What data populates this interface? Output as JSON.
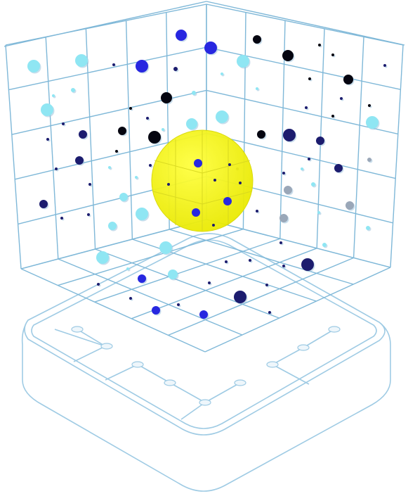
{
  "colors": {
    "grid": "#7fb8d8",
    "base": "#9fcbe4",
    "highlight": "#f5f500",
    "cyan": "#8fe6f3",
    "blue": "#2727e0",
    "navy": "#1c1c6e",
    "black": "#050510",
    "gray": "#9aa7b8"
  },
  "highlight_sphere": {
    "label": "",
    "color_name": "yellow"
  },
  "particle_count": 92
}
